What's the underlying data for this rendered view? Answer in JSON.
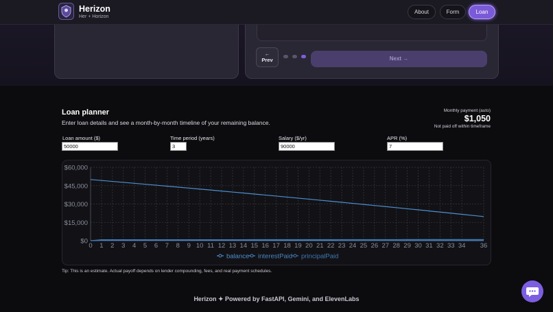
{
  "header": {
    "title": "Herizon",
    "subtitle": "Her + Horizon",
    "nav": [
      "About",
      "Form",
      "Loan"
    ]
  },
  "carousel": {
    "prev_icon": "←",
    "prev": "Prev",
    "next": "Next →"
  },
  "loan_planner": {
    "title": "Loan planner",
    "subtitle": "Enter loan details and see a month-by-month timeline of your remaining balance.",
    "payment_label": "Monthly payment (auto)",
    "payment": "$1,050",
    "status": "Not paid off within timeframe",
    "fields": [
      {
        "label": "Loan amount ($)",
        "value": 50000
      },
      {
        "label": "Time period (years)",
        "value": 3
      },
      {
        "label": "Salary ($/yr)",
        "value": 90000
      },
      {
        "label": "APR (%)",
        "value": 7
      }
    ],
    "tip": "Tip: This is an estimate. Actual payoff depends on lender compounding, fees, and real payment schedules."
  },
  "chart_data": {
    "type": "line",
    "x": [
      0,
      1,
      2,
      3,
      4,
      5,
      6,
      7,
      8,
      9,
      10,
      11,
      12,
      13,
      14,
      15,
      16,
      17,
      18,
      19,
      20,
      21,
      22,
      23,
      24,
      25,
      26,
      27,
      28,
      29,
      30,
      31,
      32,
      33,
      34,
      35,
      36
    ],
    "series": [
      {
        "name": "balance",
        "color": "#4f8fd0",
        "values": [
          50000,
          49242,
          48479,
          47712,
          46940,
          46164,
          45383,
          44598,
          43808,
          43014,
          42215,
          41411,
          40603,
          39790,
          38972,
          38149,
          37322,
          36490,
          35653,
          34811,
          33964,
          33112,
          32255,
          31393,
          30526,
          29654,
          28777,
          27895,
          27008,
          26115,
          25218,
          24315,
          23407,
          22493,
          21575,
          20650,
          19721
        ]
      },
      {
        "name": "interestPaid",
        "color": "#4a84c2",
        "values": [
          0,
          292,
          287,
          283,
          278,
          274,
          269,
          265,
          260,
          256,
          251,
          246,
          242,
          237,
          232,
          227,
          223,
          218,
          213,
          208,
          203,
          198,
          193,
          188,
          183,
          178,
          173,
          168,
          163,
          158,
          152,
          147,
          142,
          137,
          131,
          126,
          121
        ]
      },
      {
        "name": "principalPaid",
        "color": "#3f78b5",
        "values": [
          0,
          758,
          763,
          767,
          772,
          776,
          781,
          785,
          790,
          795,
          799,
          804,
          808,
          813,
          818,
          823,
          828,
          832,
          837,
          842,
          847,
          852,
          857,
          862,
          867,
          872,
          877,
          882,
          887,
          893,
          898,
          903,
          908,
          914,
          919,
          924,
          930
        ]
      }
    ],
    "xlim": [
      0,
      36
    ],
    "xticks": [
      0,
      1,
      2,
      3,
      4,
      5,
      6,
      7,
      8,
      9,
      10,
      11,
      12,
      13,
      14,
      15,
      16,
      17,
      18,
      19,
      20,
      21,
      22,
      23,
      24,
      25,
      26,
      27,
      28,
      29,
      30,
      31,
      32,
      33,
      34,
      36
    ],
    "ylim": [
      0,
      60000
    ],
    "yticks": [
      {
        "value": 0,
        "label": "$0"
      },
      {
        "value": 15000,
        "label": "$15,000"
      },
      {
        "value": 30000,
        "label": "$30,000"
      },
      {
        "value": 45000,
        "label": "$45,000"
      },
      {
        "value": 60000,
        "label": "$60,000"
      }
    ],
    "grid": true,
    "legend": "bottom"
  },
  "footer": "Herizon ✦ Powered by FastAPI, Gemini, and ElevenLabs"
}
